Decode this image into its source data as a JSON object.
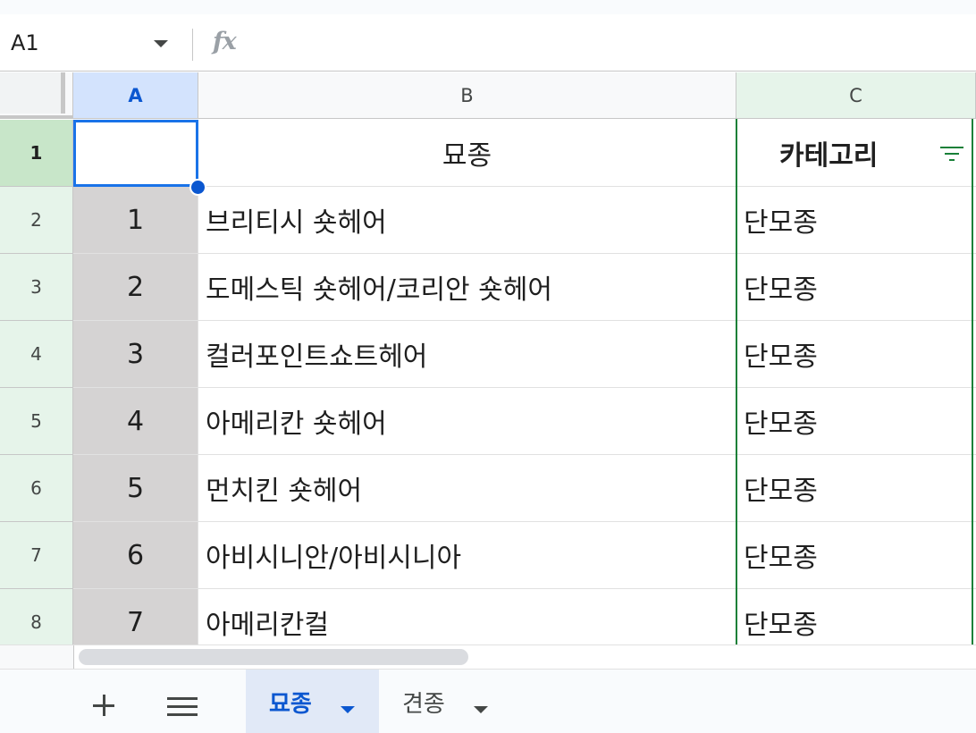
{
  "formula_bar": {
    "name_box": "A1",
    "fx_label": "fx",
    "formula_value": ""
  },
  "columns": [
    {
      "letter": "A",
      "selected": true
    },
    {
      "letter": "B",
      "selected": false
    },
    {
      "letter": "C",
      "selected": false,
      "filtered": true
    }
  ],
  "header_row": {
    "row_number": "1",
    "a": "",
    "b": "묘종",
    "c": "카테고리"
  },
  "rows": [
    {
      "row_number": "2",
      "a": "1",
      "b": "브리티시 숏헤어",
      "c": "단모종"
    },
    {
      "row_number": "3",
      "a": "2",
      "b": "도메스틱 숏헤어/코리안 숏헤어",
      "c": "단모종"
    },
    {
      "row_number": "4",
      "a": "3",
      "b": "컬러포인트쇼트헤어",
      "c": "단모종"
    },
    {
      "row_number": "5",
      "a": "4",
      "b": "아메리칸 숏헤어",
      "c": "단모종"
    },
    {
      "row_number": "6",
      "a": "5",
      "b": "먼치킨 숏헤어",
      "c": "단모종"
    },
    {
      "row_number": "7",
      "a": "6",
      "b": "아비시니안/아비시니아",
      "c": "단모종"
    },
    {
      "row_number": "8",
      "a": "7",
      "b": "아메리칸컬",
      "c": "단모종"
    }
  ],
  "sheet_tabs": {
    "add_icon": "plus-icon",
    "menu_icon": "hamburger-icon",
    "tabs": [
      {
        "label": "묘종",
        "active": true
      },
      {
        "label": "견종",
        "active": false
      }
    ]
  },
  "colors": {
    "selection": "#1a73e8",
    "filter_green": "#188038",
    "row_header_green": "#e6f4ea",
    "col_a_fill": "#d5d3d3"
  }
}
